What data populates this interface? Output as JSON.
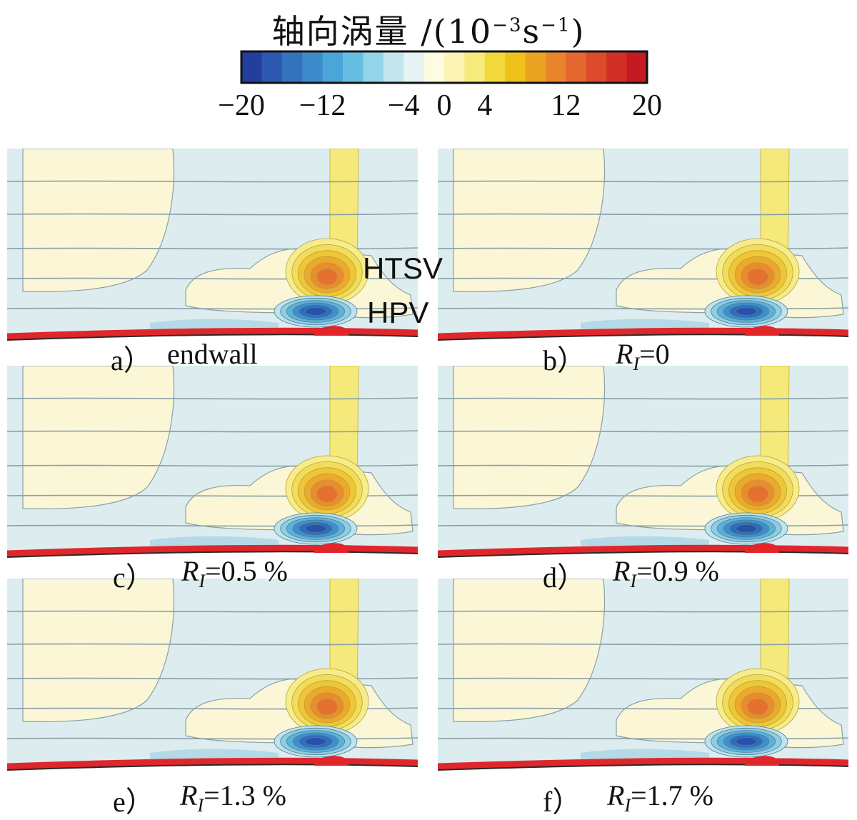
{
  "colorbar": {
    "title_text": "轴向涡量 /(10",
    "title_exp1": "−3",
    "title_mid": "s",
    "title_exp2": "−1",
    "title_close": ")",
    "min": -20,
    "max": 20,
    "tick_labels": [
      "−20",
      "−12",
      "−4",
      "0",
      "4",
      "12",
      "20"
    ],
    "tick_values": [
      -20,
      -12,
      -4,
      0,
      4,
      12,
      20
    ],
    "colors": [
      "#233e9c",
      "#2c58b0",
      "#3572bd",
      "#3e8bcb",
      "#4aa5d8",
      "#66bfe2",
      "#93d4e8",
      "#c3e6ee",
      "#e6f3f4",
      "#fdfbe0",
      "#fbf4b4",
      "#f6eb7a",
      "#f1d93c",
      "#eec21b",
      "#eba322",
      "#e8852c",
      "#e46730",
      "#dd4a2c",
      "#d22f27",
      "#c41b22"
    ]
  },
  "annotations": {
    "htsv": "HTSV",
    "hpv": "HPV"
  },
  "panels": [
    {
      "letter": "a）",
      "label_text": "endwall",
      "italic_label": false
    },
    {
      "letter": "b）",
      "label_var": "R",
      "label_sub": "I",
      "label_val": "=0",
      "italic_label": true
    },
    {
      "letter": "c）",
      "label_var": "R",
      "label_sub": "I",
      "label_val": "=0.5 %",
      "italic_label": true
    },
    {
      "letter": "d）",
      "label_var": "R",
      "label_sub": "I",
      "label_val": "=0.9 %",
      "italic_label": true
    },
    {
      "letter": "e）",
      "label_var": "R",
      "label_sub": "I",
      "label_val": "=1.3 %",
      "italic_label": true
    },
    {
      "letter": "f）",
      "label_var": "R",
      "label_sub": "I",
      "label_val": "=1.7 %",
      "italic_label": true
    }
  ],
  "palette": {
    "background_field": "#dcecef",
    "cream": "#fbf6d6",
    "yellow": "#f4e97a",
    "endwall": "#e1262b",
    "contour": "#8aa0a8"
  }
}
